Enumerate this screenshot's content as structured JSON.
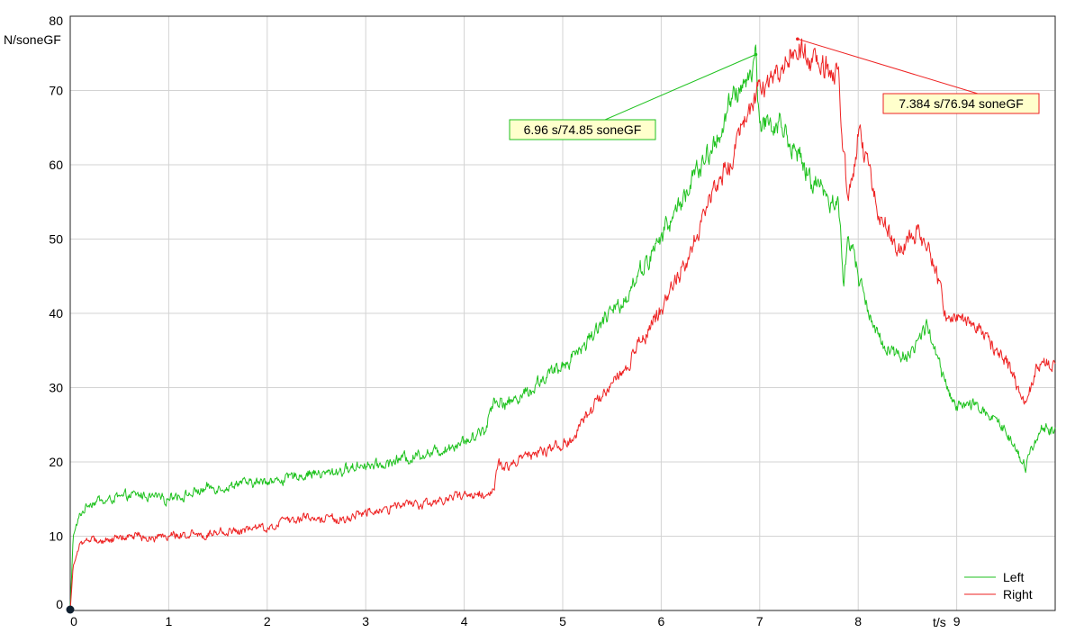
{
  "chart_data": {
    "type": "line",
    "title": "",
    "ylabel": "N/soneGF",
    "xlabel": "t/s",
    "xlim": [
      0,
      10
    ],
    "ylim": [
      0,
      80
    ],
    "x_ticks": [
      "0",
      "1",
      "2",
      "3",
      "4",
      "5",
      "6",
      "7",
      "8",
      "9"
    ],
    "y_ticks": [
      "0",
      "10",
      "20",
      "30",
      "40",
      "50",
      "60",
      "70",
      "80"
    ],
    "grid": true,
    "legend_position": "bottom-right",
    "series": [
      {
        "name": "Left",
        "color": "#1fc21f",
        "x": [
          0,
          0.03,
          0.1,
          0.2,
          0.5,
          1.0,
          1.5,
          2.0,
          2.5,
          3.0,
          3.5,
          4.0,
          4.2,
          4.3,
          4.5,
          5.0,
          5.5,
          6.0,
          6.5,
          6.8,
          6.96,
          7.0,
          7.2,
          7.5,
          7.8,
          7.85,
          7.9,
          8.2,
          8.5,
          8.7,
          8.9,
          9.0,
          9.2,
          9.5,
          9.7,
          9.85,
          10.0
        ],
        "values": [
          0,
          10,
          13,
          14.5,
          15.2,
          15.6,
          16.2,
          17.3,
          18.3,
          19.6,
          21,
          23,
          24,
          28.5,
          28.5,
          32.5,
          40,
          50,
          62,
          71,
          74.85,
          66,
          66,
          58,
          55,
          44,
          50,
          37,
          34.5,
          38.5,
          30,
          27.5,
          27.5,
          24.5,
          19.5,
          25,
          24
        ]
      },
      {
        "name": "Right",
        "color": "#ee2222",
        "x": [
          0,
          0.03,
          0.1,
          0.2,
          0.5,
          1.0,
          1.5,
          2.0,
          2.5,
          3.0,
          3.5,
          4.0,
          4.3,
          4.35,
          4.5,
          5.0,
          5.5,
          6.0,
          6.5,
          7.0,
          7.2,
          7.384,
          7.6,
          7.8,
          7.85,
          7.9,
          8.0,
          8.2,
          8.4,
          8.6,
          8.7,
          8.9,
          9.0,
          9.3,
          9.5,
          9.7,
          9.8,
          10.0
        ],
        "values": [
          0,
          6,
          8.5,
          9.5,
          9.8,
          10.2,
          10.5,
          11.5,
          12.5,
          13.2,
          14.2,
          15.2,
          16.5,
          19.5,
          20,
          22.5,
          30,
          40,
          55,
          68,
          72,
          76.94,
          73,
          72,
          62,
          55,
          64,
          54,
          48,
          52,
          50,
          40,
          40,
          37,
          34,
          28,
          32,
          34
        ]
      }
    ],
    "annotations": [
      {
        "series": "Left",
        "x": 6.96,
        "y": 74.85,
        "label": "6.96 s/74.85 soneGF"
      },
      {
        "series": "Right",
        "x": 7.384,
        "y": 76.94,
        "label": "7.384 s/76.94 soneGF"
      }
    ]
  }
}
